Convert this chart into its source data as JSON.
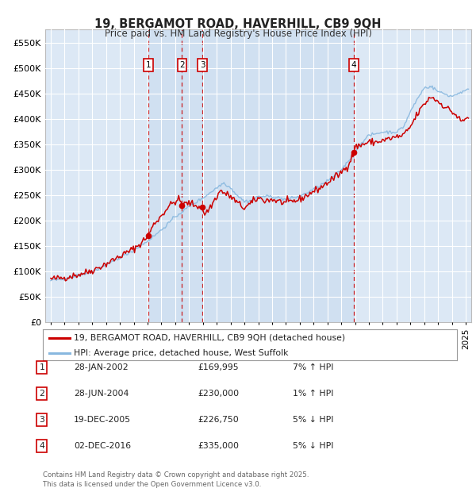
{
  "title": "19, BERGAMOT ROAD, HAVERHILL, CB9 9QH",
  "subtitle": "Price paid vs. HM Land Registry's House Price Index (HPI)",
  "legend_line1": "19, BERGAMOT ROAD, HAVERHILL, CB9 9QH (detached house)",
  "legend_line2": "HPI: Average price, detached house, West Suffolk",
  "footer": "Contains HM Land Registry data © Crown copyright and database right 2025.\nThis data is licensed under the Open Government Licence v3.0.",
  "sales": [
    {
      "num": 1,
      "date_label": "28-JAN-2002",
      "price_label": "£169,995",
      "hpi_label": "7% ↑ HPI",
      "date_x": 2002.08,
      "price": 169995
    },
    {
      "num": 2,
      "date_label": "28-JUN-2004",
      "price_label": "£230,000",
      "hpi_label": "1% ↑ HPI",
      "date_x": 2004.49,
      "price": 230000
    },
    {
      "num": 3,
      "date_label": "19-DEC-2005",
      "price_label": "£226,750",
      "hpi_label": "5% ↓ HPI",
      "date_x": 2005.97,
      "price": 226750
    },
    {
      "num": 4,
      "date_label": "02-DEC-2016",
      "price_label": "£335,000",
      "hpi_label": "5% ↓ HPI",
      "date_x": 2016.92,
      "price": 335000
    }
  ],
  "ylim": [
    0,
    577000
  ],
  "xlim": [
    1994.6,
    2025.4
  ],
  "yticks": [
    0,
    50000,
    100000,
    150000,
    200000,
    250000,
    300000,
    350000,
    400000,
    450000,
    500000,
    550000
  ],
  "ytick_labels": [
    "£0",
    "£50K",
    "£100K",
    "£150K",
    "£200K",
    "£250K",
    "£300K",
    "£350K",
    "£400K",
    "£450K",
    "£500K",
    "£550K"
  ],
  "background_color": "#ffffff",
  "plot_bg": "#dce8f5",
  "red_color": "#cc0000",
  "blue_color": "#88b8df",
  "grid_color": "#ffffff",
  "shade_color": "#c8ddf0"
}
